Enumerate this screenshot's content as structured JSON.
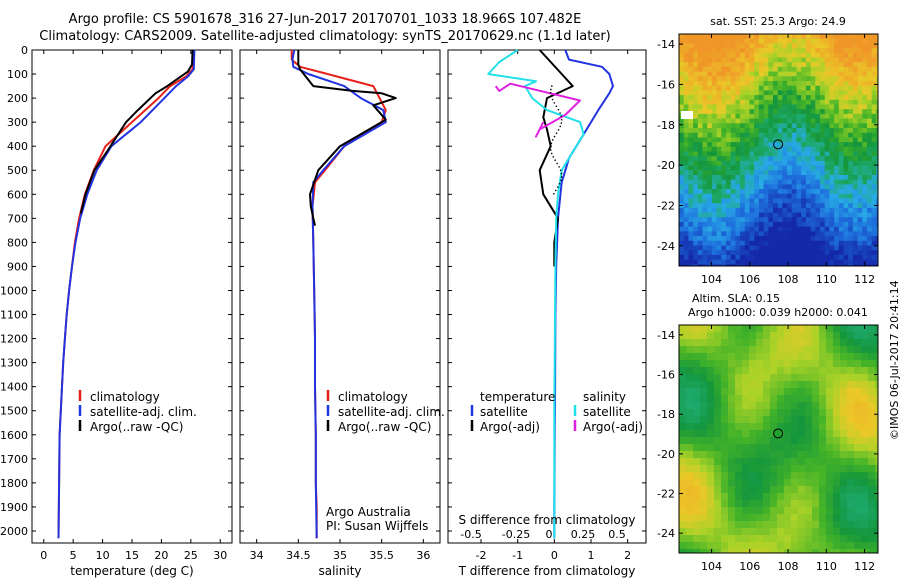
{
  "header": {
    "title_line1": "Argo profile: CS 5901678_316 27-Jun-2017 20170701_1033 18.966S 107.482E",
    "title_line2": "Climatology: CARS2009. Satellite-adjusted climatology: synTS_20170629.nc (1.1d later)"
  },
  "colors": {
    "climatology": "#e8201a",
    "satellite": "#2233e0",
    "argo": "#000000",
    "sat_salt": "#22e0e8",
    "argo_adj_salt": "#e020e0"
  },
  "chart_data": [
    {
      "id": "temperature",
      "type": "line",
      "xlabel": "temperature (deg C)",
      "ylabel": "",
      "xlim": [
        -2,
        32
      ],
      "ylim": [
        2050,
        0
      ],
      "xticks": [
        0,
        5,
        10,
        15,
        20,
        25,
        30
      ],
      "yticks": [
        0,
        100,
        200,
        300,
        400,
        500,
        600,
        700,
        800,
        900,
        1000,
        1100,
        1200,
        1300,
        1400,
        1500,
        1600,
        1700,
        1800,
        1900,
        2000
      ],
      "legend": [
        "climatology",
        "satellite-adj. clim.",
        "Argo(..raw -QC)"
      ],
      "series": [
        {
          "name": "climatology",
          "color": "#e8201a",
          "x": [
            25.4,
            25.3,
            24.2,
            21.5,
            19.5,
            15.0,
            10.5,
            8.5,
            7.0,
            6.0,
            5.3,
            4.8,
            4.3,
            3.9,
            3.6,
            3.3,
            3.1,
            2.9,
            2.7,
            2.6,
            2.5
          ],
          "y": [
            0,
            80,
            110,
            150,
            200,
            300,
            400,
            500,
            600,
            700,
            800,
            900,
            1000,
            1100,
            1200,
            1300,
            1400,
            1500,
            1600,
            1800,
            2030
          ]
        },
        {
          "name": "satellite-adj. clim.",
          "color": "#2233e0",
          "x": [
            25.6,
            25.5,
            24.5,
            22.5,
            20.5,
            16.5,
            11.5,
            9.0,
            7.4,
            6.2,
            5.4,
            4.8,
            4.3,
            3.9,
            3.6,
            3.3,
            3.1,
            2.9,
            2.7,
            2.6,
            2.5
          ],
          "y": [
            0,
            80,
            110,
            150,
            200,
            300,
            400,
            500,
            600,
            700,
            800,
            900,
            1000,
            1100,
            1200,
            1300,
            1400,
            1500,
            1600,
            1800,
            2030
          ]
        },
        {
          "name": "Argo(..raw -QC)",
          "color": "#000000",
          "x": [
            25.3,
            25.2,
            24.5,
            21.0,
            19.0,
            16.0,
            14.0,
            10.8,
            8.6,
            7.1,
            6.3
          ],
          "y": [
            0,
            60,
            90,
            150,
            180,
            250,
            300,
            420,
            500,
            600,
            680
          ]
        }
      ],
      "annotations": []
    },
    {
      "id": "salinity",
      "type": "line",
      "xlabel": "salinity",
      "ylabel": "",
      "xlim": [
        33.8,
        36.2
      ],
      "ylim": [
        2050,
        0
      ],
      "xticks": [
        34,
        34.5,
        35,
        35.5,
        36
      ],
      "legend": [
        "climatology",
        "satellite-adj. clim.",
        "Argo(..raw -QC)"
      ],
      "series": [
        {
          "name": "climatology",
          "color": "#e8201a",
          "x": [
            34.42,
            34.42,
            34.52,
            34.85,
            35.4,
            35.55,
            35.5,
            35.05,
            34.82,
            34.7,
            34.67,
            34.68,
            34.69,
            34.7,
            34.7,
            34.71,
            34.71,
            34.72,
            34.72
          ],
          "y": [
            0,
            40,
            70,
            100,
            150,
            250,
            300,
            400,
            500,
            550,
            650,
            800,
            1000,
            1200,
            1400,
            1600,
            1800,
            1900,
            2030
          ]
        },
        {
          "name": "satellite-adj. clim.",
          "color": "#2233e0",
          "x": [
            34.45,
            34.43,
            34.44,
            34.62,
            35.05,
            35.25,
            35.52,
            35.55,
            35.05,
            34.8,
            34.68,
            34.67,
            34.68,
            34.69,
            34.7,
            34.7,
            34.71,
            34.71,
            34.72
          ],
          "y": [
            0,
            40,
            70,
            100,
            150,
            200,
            250,
            300,
            400,
            500,
            550,
            650,
            800,
            1000,
            1200,
            1400,
            1600,
            1800,
            2030
          ]
        },
        {
          "name": "Argo(..raw -QC)",
          "color": "#000000",
          "x": [
            34.5,
            34.5,
            34.52,
            34.68,
            35.15,
            35.5,
            35.67,
            35.4,
            35.55,
            35.0,
            34.74,
            34.64,
            34.65,
            34.68,
            34.7
          ],
          "y": [
            0,
            60,
            80,
            150,
            170,
            180,
            200,
            230,
            290,
            400,
            500,
            600,
            650,
            700,
            730
          ]
        }
      ],
      "annotations": [
        "Argo Australia",
        "PI: Susan Wijffels"
      ]
    },
    {
      "id": "difference",
      "type": "line",
      "xlabel": "T difference from climatology",
      "ylabel": "",
      "top_axis_label": "S difference from climatology",
      "xlim": [
        -2.9,
        2.5
      ],
      "ylim": [
        2050,
        0
      ],
      "xticks": [
        -2,
        -1,
        0,
        1,
        2
      ],
      "top_ticks": [
        -0.5,
        -0.25,
        0,
        0.25,
        0.5
      ],
      "legend_left_title": "temperature",
      "legend_right_title": "salinity",
      "legend": [
        "satellite",
        "Argo(-adj)",
        "satellite",
        "Argo(-adj)"
      ],
      "series": [
        {
          "name": "satellite",
          "group": "temperature",
          "color": "#2233e0",
          "x": [
            0.3,
            0.4,
            1.3,
            1.5,
            1.6,
            1.5,
            1.2,
            0.8,
            0.4,
            0.2,
            0.1,
            0.05,
            0.03,
            0.02,
            0.01,
            0.0,
            0.0
          ],
          "y": [
            0,
            40,
            70,
            100,
            150,
            180,
            250,
            350,
            450,
            550,
            700,
            900,
            1100,
            1400,
            1600,
            1900,
            2030
          ]
        },
        {
          "name": "Argo(-adj)",
          "group": "temperature",
          "color": "#000000",
          "x": [
            -0.4,
            -0.1,
            0.2,
            0.5,
            -0.2,
            -0.3,
            -0.2,
            -0.1,
            -0.4,
            -0.3,
            0.1,
            0.0,
            0.0
          ],
          "y": [
            0,
            50,
            100,
            150,
            200,
            280,
            330,
            400,
            500,
            600,
            700,
            800,
            900
          ]
        },
        {
          "name": "satellite",
          "group": "salinity",
          "color": "#22e0e8",
          "x": [
            -1.0,
            -1.5,
            -1.8,
            -0.5,
            -0.8,
            -0.6,
            -0.2,
            0.7,
            0.8,
            0.6,
            0.2,
            0.1,
            0.05,
            0.03,
            0.0,
            0.0
          ],
          "y": [
            0,
            50,
            100,
            130,
            150,
            200,
            250,
            300,
            350,
            400,
            500,
            600,
            700,
            900,
            1500,
            2030
          ]
        },
        {
          "name": "Argo(-adj)",
          "group": "salinity",
          "color": "#e020e0",
          "x": [
            -1.6,
            -1.5,
            -1.2,
            0.7,
            0.3,
            -0.4,
            -0.5,
            -0.3
          ],
          "y": [
            150,
            170,
            140,
            210,
            270,
            330,
            360,
            300
          ]
        }
      ],
      "annotations": []
    }
  ],
  "maps": {
    "sst_title": "sat. SST: 25.3 Argo: 24.9",
    "sla_title_1": "Altim. SLA: 0.15",
    "sla_title_2": "Argo h1000: 0.039 h2000: 0.041",
    "xticks": [
      104,
      106,
      108,
      110,
      112
    ],
    "yticks": [
      -14,
      -16,
      -18,
      -20,
      -22,
      -24
    ],
    "lon_range": [
      102.3,
      112.7
    ],
    "lat_range": [
      -25,
      -13.5
    ],
    "argo_position": {
      "lon": 107.48,
      "lat": -18.97
    }
  },
  "credit": "©IMOS 06-Jul-2017 20:41:14"
}
